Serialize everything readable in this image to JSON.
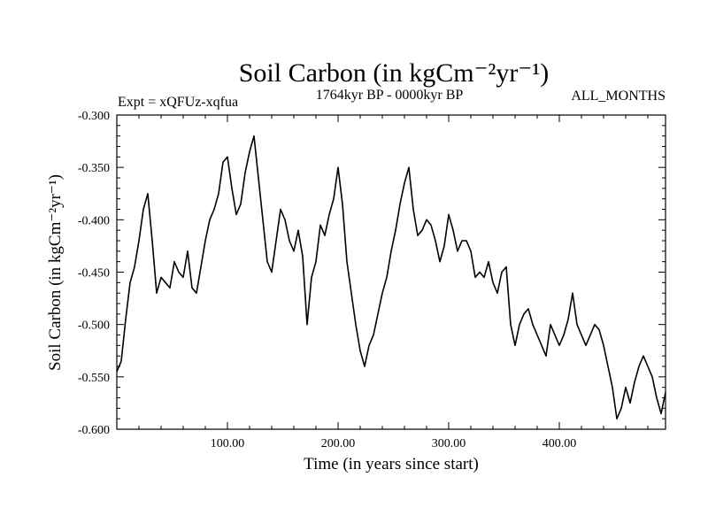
{
  "chart_data": {
    "type": "line",
    "title": "Soil Carbon (in kgCm⁻²yr⁻¹)",
    "subtitle_left": "Expt = xQFUz-xqfua",
    "subtitle_center": "1764kyr BP - 0000kyr BP",
    "subtitle_right": "ALL_MONTHS",
    "xlabel": "Time (in years since start)",
    "ylabel": "Soil Carbon (in kgCm⁻²yr⁻¹)",
    "xlim": [
      0,
      496
    ],
    "ylim": [
      -0.6,
      -0.3
    ],
    "x_ticks": [
      100,
      200,
      300,
      400
    ],
    "x_tick_labels": [
      "100.00",
      "200.00",
      "300.00",
      "400.00"
    ],
    "y_ticks": [
      -0.3,
      -0.35,
      -0.4,
      -0.45,
      -0.5,
      -0.55,
      -0.6
    ],
    "y_tick_labels": [
      "-0.300",
      "-0.350",
      "-0.400",
      "-0.450",
      "-0.500",
      "-0.550",
      "-0.600"
    ],
    "grid": false,
    "series": [
      {
        "color": "#000000",
        "x": [
          0,
          4,
          8,
          12,
          16,
          20,
          24,
          28,
          32,
          36,
          40,
          44,
          48,
          52,
          56,
          60,
          64,
          68,
          72,
          76,
          80,
          84,
          88,
          92,
          96,
          100,
          104,
          108,
          112,
          116,
          120,
          124,
          128,
          132,
          136,
          140,
          144,
          148,
          152,
          156,
          160,
          164,
          168,
          172,
          176,
          180,
          184,
          188,
          192,
          196,
          200,
          204,
          208,
          212,
          216,
          220,
          224,
          228,
          232,
          236,
          240,
          244,
          248,
          252,
          256,
          260,
          264,
          268,
          272,
          276,
          280,
          284,
          288,
          292,
          296,
          300,
          304,
          308,
          312,
          316,
          320,
          324,
          328,
          332,
          336,
          340,
          344,
          348,
          352,
          356,
          360,
          364,
          368,
          372,
          376,
          380,
          384,
          388,
          392,
          396,
          400,
          404,
          408,
          412,
          416,
          420,
          424,
          428,
          432,
          436,
          440,
          444,
          448,
          452,
          456,
          460,
          464,
          468,
          472,
          476,
          480,
          484,
          488,
          492,
          496
        ],
        "y": [
          -0.545,
          -0.535,
          -0.495,
          -0.46,
          -0.445,
          -0.42,
          -0.39,
          -0.375,
          -0.42,
          -0.47,
          -0.455,
          -0.46,
          -0.465,
          -0.44,
          -0.45,
          -0.455,
          -0.43,
          -0.465,
          -0.47,
          -0.445,
          -0.42,
          -0.4,
          -0.39,
          -0.375,
          -0.345,
          -0.34,
          -0.37,
          -0.395,
          -0.385,
          -0.355,
          -0.335,
          -0.32,
          -0.36,
          -0.4,
          -0.44,
          -0.45,
          -0.42,
          -0.39,
          -0.4,
          -0.42,
          -0.43,
          -0.41,
          -0.435,
          -0.5,
          -0.455,
          -0.44,
          -0.405,
          -0.415,
          -0.395,
          -0.38,
          -0.35,
          -0.385,
          -0.44,
          -0.47,
          -0.5,
          -0.525,
          -0.54,
          -0.52,
          -0.51,
          -0.49,
          -0.47,
          -0.455,
          -0.43,
          -0.41,
          -0.385,
          -0.365,
          -0.35,
          -0.39,
          -0.415,
          -0.41,
          -0.4,
          -0.405,
          -0.42,
          -0.44,
          -0.425,
          -0.395,
          -0.41,
          -0.43,
          -0.42,
          -0.42,
          -0.43,
          -0.455,
          -0.45,
          -0.455,
          -0.44,
          -0.46,
          -0.47,
          -0.45,
          -0.445,
          -0.5,
          -0.52,
          -0.5,
          -0.49,
          -0.485,
          -0.5,
          -0.51,
          -0.52,
          -0.53,
          -0.5,
          -0.51,
          -0.52,
          -0.51,
          -0.495,
          -0.47,
          -0.5,
          -0.51,
          -0.52,
          -0.51,
          -0.5,
          -0.505,
          -0.52,
          -0.54,
          -0.56,
          -0.59,
          -0.58,
          -0.56,
          -0.575,
          -0.555,
          -0.54,
          -0.53,
          -0.54,
          -0.55,
          -0.57,
          -0.585,
          -0.565
        ]
      }
    ]
  }
}
